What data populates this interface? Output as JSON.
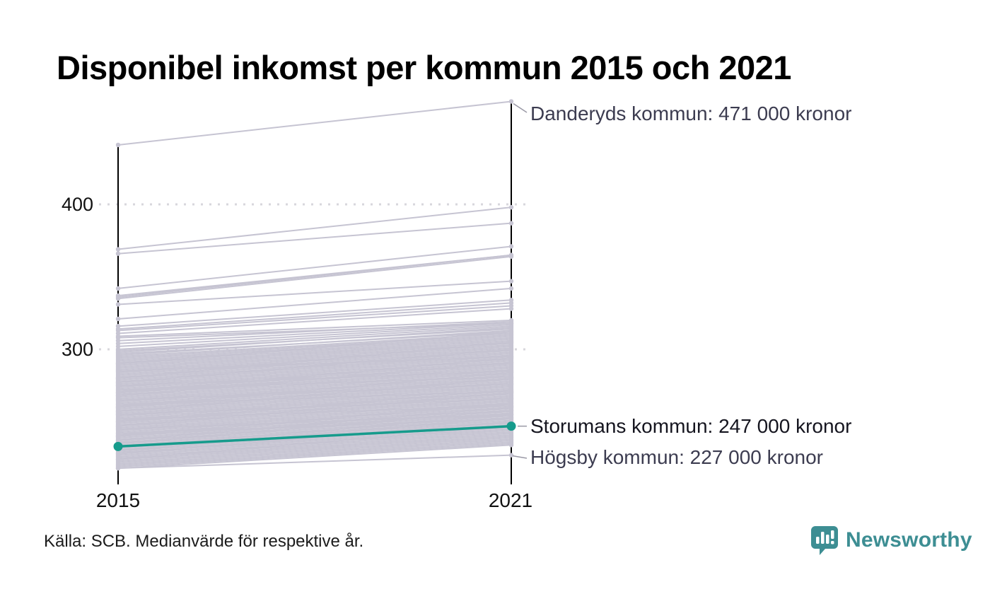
{
  "title": "Disponibel inkomst per kommun 2015 och 2021",
  "chart_data": {
    "type": "line",
    "subtype": "slope-chart",
    "x": [
      "2015",
      "2021"
    ],
    "unit": "tusen kronor",
    "ylim": [
      210,
      480
    ],
    "yticks": [
      "400",
      "300"
    ],
    "ytick_values": [
      400,
      300
    ],
    "grid": "dotted-horizontal",
    "line_color": "#c6c4d2",
    "gridline_color": "#d8d7dc",
    "axis_color": "#000000",
    "leader_color": "#9a99a6",
    "highlight_series": {
      "name": "Storumans kommun",
      "values": [
        233,
        247
      ],
      "color": "#169b8c",
      "label": "Storumans kommun: 247 000 kronor"
    },
    "labeled_series": [
      {
        "name": "Danderyds kommun",
        "values": [
          441,
          471
        ],
        "label": "Danderyds kommun: 471 000 kronor"
      },
      {
        "name": "Högsby kommun",
        "values": [
          218,
          227
        ],
        "label": "Högsby kommun: 227 000 kronor"
      }
    ],
    "background_lines": [
      [
        369,
        398
      ],
      [
        366,
        387
      ],
      [
        342,
        371
      ],
      [
        337,
        365
      ],
      [
        336,
        365
      ],
      [
        335,
        364
      ],
      [
        331,
        347
      ],
      [
        321,
        342
      ],
      [
        316,
        334
      ],
      [
        314,
        332
      ],
      [
        313,
        330
      ],
      [
        311,
        328
      ],
      [
        309,
        320
      ],
      [
        308,
        318
      ],
      [
        306,
        319
      ],
      [
        304,
        318
      ],
      [
        302,
        317
      ],
      [
        300,
        316
      ],
      [
        299,
        314
      ],
      [
        298,
        315
      ],
      [
        297,
        312
      ],
      [
        296,
        313
      ],
      [
        295,
        311
      ],
      [
        294,
        310
      ],
      [
        293,
        309
      ],
      [
        292,
        308
      ],
      [
        291,
        307
      ],
      [
        290,
        306
      ],
      [
        289,
        305
      ],
      [
        288,
        304
      ],
      [
        287,
        303
      ],
      [
        286,
        302
      ],
      [
        285,
        301
      ],
      [
        284,
        300
      ],
      [
        283,
        299
      ],
      [
        282,
        298
      ],
      [
        281,
        297
      ],
      [
        280,
        296
      ],
      [
        279,
        295
      ],
      [
        278,
        294
      ],
      [
        277,
        293
      ],
      [
        276,
        292
      ],
      [
        275,
        291
      ],
      [
        274,
        290
      ],
      [
        273,
        289
      ],
      [
        272,
        288
      ],
      [
        271,
        287
      ],
      [
        270,
        286
      ],
      [
        269,
        285
      ],
      [
        268,
        284
      ],
      [
        267,
        283
      ],
      [
        266,
        282
      ],
      [
        265,
        281
      ],
      [
        264,
        280
      ],
      [
        263,
        279
      ],
      [
        262,
        278
      ],
      [
        261,
        277
      ],
      [
        260,
        276
      ],
      [
        259,
        275
      ],
      [
        258,
        274
      ],
      [
        257,
        273
      ],
      [
        256,
        272
      ],
      [
        255,
        271
      ],
      [
        254,
        270
      ],
      [
        253,
        269
      ],
      [
        252,
        268
      ],
      [
        251,
        267
      ],
      [
        250,
        266
      ],
      [
        249,
        265
      ],
      [
        248,
        264
      ],
      [
        247,
        263
      ],
      [
        246,
        262
      ],
      [
        245,
        261
      ],
      [
        244,
        260
      ],
      [
        243,
        259
      ],
      [
        242,
        258
      ],
      [
        241,
        257
      ],
      [
        240,
        256
      ],
      [
        239,
        255
      ],
      [
        238,
        254
      ],
      [
        237,
        253
      ],
      [
        236,
        252
      ],
      [
        235,
        251
      ],
      [
        234,
        250
      ],
      [
        233,
        249
      ],
      [
        232,
        248
      ],
      [
        231,
        247
      ],
      [
        230,
        246
      ],
      [
        229,
        245
      ],
      [
        228,
        244
      ],
      [
        227,
        243
      ],
      [
        226,
        242
      ],
      [
        225,
        241
      ],
      [
        224,
        240
      ],
      [
        223,
        239
      ],
      [
        222,
        238
      ],
      [
        221,
        237
      ],
      [
        220,
        236
      ],
      [
        219,
        235
      ],
      [
        218,
        234
      ],
      [
        250,
        272
      ],
      [
        255,
        266
      ],
      [
        260,
        284
      ],
      [
        265,
        276
      ],
      [
        270,
        294
      ],
      [
        245,
        255
      ],
      [
        240,
        263
      ],
      [
        275,
        285
      ],
      [
        280,
        305
      ],
      [
        235,
        258
      ],
      [
        285,
        295
      ],
      [
        290,
        312
      ],
      [
        230,
        253
      ],
      [
        262,
        271
      ],
      [
        268,
        291
      ],
      [
        252,
        261
      ],
      [
        247,
        270
      ],
      [
        257,
        280
      ],
      [
        242,
        252
      ],
      [
        237,
        260
      ],
      [
        272,
        281
      ],
      [
        277,
        300
      ],
      [
        232,
        255
      ],
      [
        228,
        250
      ],
      [
        224,
        247
      ]
    ]
  },
  "annotations": {
    "danderyd": "Danderyds kommun: 471 000 kronor",
    "storuman": "Storumans kommun: 247 000 kronor",
    "hogsby": "Högsby kommun: 227 000 kronor"
  },
  "axis": {
    "ytick_top": "400",
    "ytick_bottom": "300",
    "xtick_left": "2015",
    "xtick_right": "2021"
  },
  "source": "Källa: SCB. Medianvärde för respektive år.",
  "branding": {
    "name": "Newsworthy",
    "color": "#3d8e93",
    "icon": "bar-chart-speech-bubble"
  }
}
